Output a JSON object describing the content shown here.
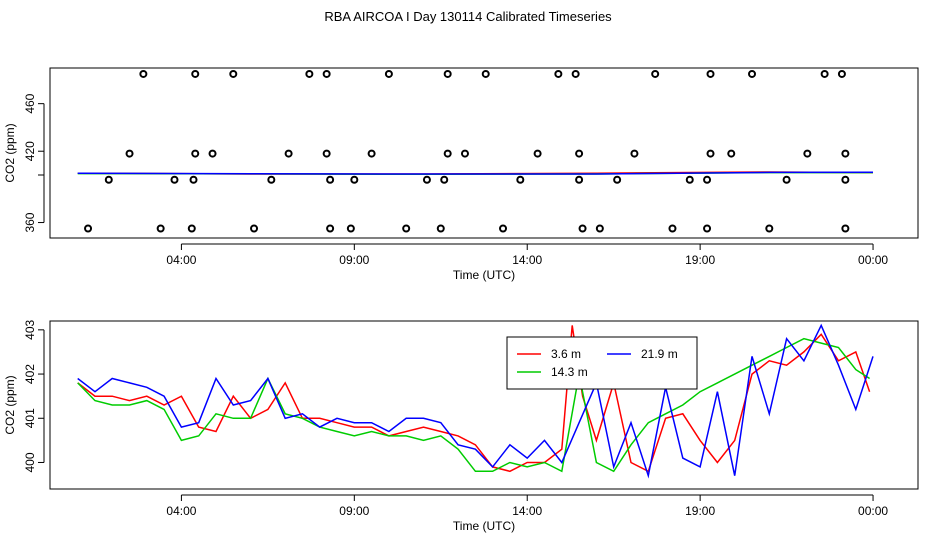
{
  "title": "RBA AIRCOA I  Day 130114  Calibrated Timeseries",
  "chart_data": [
    {
      "type": "line",
      "xlabel": "Time (UTC)",
      "ylabel": "CO2 (ppm)",
      "xlim": [
        -0.8,
        24.3
      ],
      "ylim": [
        347,
        490
      ],
      "x_ticks": [
        {
          "value": 3,
          "label": "04:00"
        },
        {
          "value": 8,
          "label": "09:00"
        },
        {
          "value": 13,
          "label": "14:00"
        },
        {
          "value": 18,
          "label": "19:00"
        },
        {
          "value": 23,
          "label": "00:00"
        }
      ],
      "y_ticks": [
        360,
        400,
        420,
        460
      ],
      "y_tick_labels": [
        "360",
        "",
        "420",
        "460"
      ],
      "grid": false,
      "series": [
        {
          "name": "3.6 m",
          "color": "#ff0000",
          "x": [
            0,
            5,
            10,
            15,
            20,
            23
          ],
          "values": [
            401.5,
            400.8,
            400.8,
            401.5,
            402.5,
            402
          ]
        },
        {
          "name": "14.3 m",
          "color": "#00cc00",
          "x": [
            0,
            5,
            10,
            15,
            20,
            23
          ],
          "values": [
            401.2,
            400.9,
            400.6,
            400.8,
            402,
            402
          ]
        },
        {
          "name": "21.9 m",
          "color": "#0000ff",
          "x": [
            0,
            5,
            10,
            15,
            20,
            23
          ],
          "values": [
            401.5,
            401.0,
            400.8,
            400.8,
            402.2,
            402.3
          ]
        }
      ],
      "scatter_series": [
        {
          "name": "",
          "color": "#000000",
          "points": [
            [
              0.3,
              355
            ],
            [
              0.9,
              396
            ],
            [
              1.5,
              418
            ],
            [
              1.9,
              485
            ],
            [
              2.4,
              355
            ],
            [
              2.8,
              396
            ],
            [
              3.3,
              355
            ],
            [
              3.35,
              396
            ],
            [
              3.4,
              418
            ],
            [
              3.4,
              485
            ],
            [
              3.9,
              418
            ],
            [
              4.5,
              485
            ],
            [
              5.1,
              355
            ],
            [
              5.6,
              396
            ],
            [
              6.1,
              418
            ],
            [
              6.7,
              485
            ],
            [
              7.2,
              485
            ],
            [
              7.2,
              418
            ],
            [
              7.3,
              396
            ],
            [
              7.3,
              355
            ],
            [
              7.9,
              355
            ],
            [
              8.0,
              396
            ],
            [
              8.5,
              418
            ],
            [
              9.0,
              485
            ],
            [
              9.5,
              355
            ],
            [
              10.1,
              396
            ],
            [
              10.5,
              355
            ],
            [
              10.6,
              396
            ],
            [
              10.7,
              418
            ],
            [
              10.7,
              485
            ],
            [
              11.2,
              418
            ],
            [
              11.8,
              485
            ],
            [
              12.3,
              355
            ],
            [
              12.8,
              396
            ],
            [
              13.3,
              418
            ],
            [
              13.9,
              485
            ],
            [
              14.4,
              485
            ],
            [
              14.5,
              418
            ],
            [
              14.5,
              396
            ],
            [
              14.6,
              355
            ],
            [
              15.1,
              355
            ],
            [
              15.6,
              396
            ],
            [
              16.1,
              418
            ],
            [
              16.7,
              485
            ],
            [
              17.2,
              355
            ],
            [
              17.7,
              396
            ],
            [
              18.2,
              355
            ],
            [
              18.2,
              396
            ],
            [
              18.3,
              418
            ],
            [
              18.3,
              485
            ],
            [
              18.9,
              418
            ],
            [
              19.5,
              485
            ],
            [
              20.0,
              355
            ],
            [
              20.5,
              396
            ],
            [
              21.1,
              418
            ],
            [
              21.6,
              485
            ],
            [
              22.1,
              485
            ],
            [
              22.2,
              418
            ],
            [
              22.2,
              396
            ],
            [
              22.2,
              355
            ]
          ]
        }
      ]
    },
    {
      "type": "line",
      "xlabel": "Time (UTC)",
      "ylabel": "CO2 (ppm)",
      "xlim": [
        -0.8,
        24.3
      ],
      "ylim": [
        399.4,
        403.2
      ],
      "x_ticks": [
        {
          "value": 3,
          "label": "04:00"
        },
        {
          "value": 8,
          "label": "09:00"
        },
        {
          "value": 13,
          "label": "14:00"
        },
        {
          "value": 18,
          "label": "19:00"
        },
        {
          "value": 23,
          "label": "00:00"
        }
      ],
      "y_ticks": [
        400,
        401,
        402,
        403
      ],
      "y_tick_labels": [
        "400",
        "401",
        "402",
        "403"
      ],
      "grid": false,
      "legend_position": "top-right",
      "series": [
        {
          "name": "3.6 m",
          "color": "#ff0000",
          "x": [
            0,
            0.5,
            1,
            1.5,
            2,
            2.5,
            3,
            3.5,
            4,
            4.5,
            5,
            5.5,
            6,
            6.5,
            7,
            7.5,
            8,
            8.5,
            9,
            9.5,
            10,
            10.5,
            11,
            11.5,
            12,
            12.5,
            13,
            13.5,
            14,
            14.3,
            14.6,
            15,
            15.5,
            16,
            16.5,
            17,
            17.5,
            18,
            18.5,
            19,
            19.5,
            20,
            20.5,
            21,
            21.5,
            22,
            22.5,
            22.9
          ],
          "values": [
            401.8,
            401.5,
            401.5,
            401.4,
            401.5,
            401.3,
            401.5,
            400.8,
            400.7,
            401.5,
            401.0,
            401.2,
            401.8,
            401.0,
            401.0,
            400.9,
            400.8,
            400.8,
            400.6,
            400.7,
            400.8,
            400.7,
            400.6,
            400.4,
            399.9,
            399.8,
            400.0,
            400.0,
            400.3,
            403.1,
            401.5,
            400.5,
            401.8,
            400.0,
            399.8,
            401.0,
            401.1,
            400.5,
            400.0,
            400.5,
            402.0,
            402.3,
            402.2,
            402.5,
            402.9,
            402.3,
            402.5,
            401.6
          ]
        },
        {
          "name": "14.3 m",
          "color": "#00cc00",
          "x": [
            0,
            0.5,
            1,
            1.5,
            2,
            2.5,
            3,
            3.5,
            4,
            4.5,
            5,
            5.5,
            6,
            6.5,
            7,
            7.5,
            8,
            8.5,
            9,
            9.5,
            10,
            10.5,
            11,
            11.5,
            12,
            12.5,
            13,
            13.5,
            14,
            14.5,
            15,
            15.5,
            16,
            16.5,
            17,
            17.5,
            18,
            18.5,
            19,
            19.5,
            20,
            20.5,
            21,
            21.5,
            22,
            22.5,
            22.9
          ],
          "values": [
            401.8,
            401.4,
            401.3,
            401.3,
            401.4,
            401.2,
            400.5,
            400.6,
            401.1,
            401.0,
            401.0,
            401.9,
            401.1,
            401.0,
            400.8,
            400.7,
            400.6,
            400.7,
            400.6,
            400.6,
            400.5,
            400.6,
            400.3,
            399.8,
            399.8,
            400.0,
            399.9,
            400.0,
            399.8,
            402.0,
            400.0,
            399.8,
            400.4,
            400.9,
            401.1,
            401.3,
            401.6,
            401.8,
            402.0,
            402.2,
            402.4,
            402.6,
            402.8,
            402.7,
            402.6,
            402.1,
            401.9
          ]
        },
        {
          "name": "21.9 m",
          "color": "#0000ff",
          "x": [
            0,
            0.5,
            1,
            1.5,
            2,
            2.5,
            3,
            3.5,
            4,
            4.5,
            5,
            5.5,
            6,
            6.5,
            7,
            7.5,
            8,
            8.5,
            9,
            9.5,
            10,
            10.5,
            11,
            11.5,
            12,
            12.5,
            13,
            13.5,
            14,
            14.5,
            15,
            15.5,
            16,
            16.5,
            17,
            17.5,
            18,
            18.5,
            19,
            19.5,
            20,
            20.5,
            21,
            21.5,
            22,
            22.5,
            23
          ],
          "values": [
            401.9,
            401.6,
            401.9,
            401.8,
            401.7,
            401.5,
            400.8,
            400.9,
            401.9,
            401.3,
            401.4,
            401.9,
            401.0,
            401.1,
            400.8,
            401.0,
            400.9,
            400.9,
            400.7,
            401.0,
            401.0,
            400.9,
            400.4,
            400.3,
            399.9,
            400.4,
            400.1,
            400.5,
            400.0,
            400.9,
            401.8,
            399.9,
            400.9,
            399.7,
            401.7,
            400.1,
            399.9,
            401.6,
            399.7,
            402.4,
            401.1,
            402.8,
            402.3,
            403.1,
            402.2,
            401.2,
            402.4
          ]
        }
      ]
    }
  ]
}
